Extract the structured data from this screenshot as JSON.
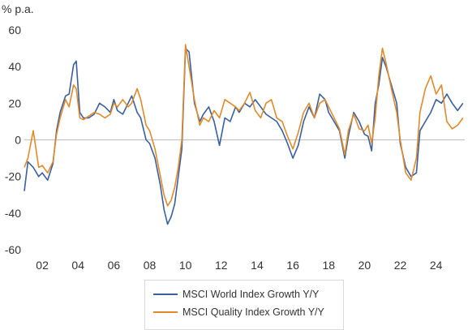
{
  "chart_data": {
    "type": "line",
    "title": "",
    "ylabel": "% p.a.",
    "xlabel": "",
    "ylim": [
      -60,
      60
    ],
    "yticks": [
      -60,
      -40,
      -20,
      0,
      20,
      40,
      60
    ],
    "xlim": [
      2001,
      2025.6
    ],
    "xticks": [
      {
        "x": 2002,
        "label": "02"
      },
      {
        "x": 2004,
        "label": "04"
      },
      {
        "x": 2006,
        "label": "06"
      },
      {
        "x": 2008,
        "label": "08"
      },
      {
        "x": 2010,
        "label": "10"
      },
      {
        "x": 2012,
        "label": "12"
      },
      {
        "x": 2014,
        "label": "14"
      },
      {
        "x": 2016,
        "label": "16"
      },
      {
        "x": 2018,
        "label": "18"
      },
      {
        "x": 2020,
        "label": "20"
      },
      {
        "x": 2022,
        "label": "22"
      },
      {
        "x": 2024,
        "label": "24"
      }
    ],
    "grid": false,
    "legend": "bottom",
    "series": [
      {
        "name": "MSCI World Index Growth Y/Y",
        "color": "#3a5f9f",
        "x": [
          2001.0,
          2001.2,
          2001.5,
          2001.8,
          2002.0,
          2002.3,
          2002.6,
          2002.8,
          2003.0,
          2003.3,
          2003.5,
          2003.75,
          2003.9,
          2004.1,
          2004.3,
          2004.6,
          2004.9,
          2005.2,
          2005.5,
          2005.8,
          2006.0,
          2006.2,
          2006.5,
          2006.8,
          2007.0,
          2007.3,
          2007.5,
          2007.8,
          2008.0,
          2008.3,
          2008.6,
          2008.8,
          2009.0,
          2009.2,
          2009.4,
          2009.6,
          2009.8,
          2010.0,
          2010.2,
          2010.5,
          2010.8,
          2011.0,
          2011.3,
          2011.6,
          2011.9,
          2012.2,
          2012.5,
          2012.8,
          2013.0,
          2013.3,
          2013.6,
          2013.9,
          2014.2,
          2014.5,
          2014.8,
          2015.1,
          2015.4,
          2015.7,
          2016.0,
          2016.3,
          2016.6,
          2016.9,
          2017.2,
          2017.5,
          2017.8,
          2018.0,
          2018.3,
          2018.6,
          2018.9,
          2019.1,
          2019.4,
          2019.7,
          2020.0,
          2020.2,
          2020.4,
          2020.6,
          2020.8,
          2021.0,
          2021.2,
          2021.5,
          2021.8,
          2022.0,
          2022.3,
          2022.6,
          2022.9,
          2023.1,
          2023.4,
          2023.7,
          2024.0,
          2024.3,
          2024.6,
          2024.9,
          2025.2,
          2025.5
        ],
        "values": [
          -28,
          -12,
          -15,
          -20,
          -18,
          -22,
          -13,
          5,
          15,
          24,
          25,
          41,
          43,
          15,
          12,
          12,
          14,
          20,
          18,
          15,
          22,
          16,
          14,
          20,
          24,
          15,
          12,
          0,
          -2,
          -10,
          -25,
          -38,
          -46,
          -42,
          -35,
          -20,
          -5,
          50,
          48,
          20,
          10,
          14,
          18,
          10,
          -3,
          12,
          10,
          18,
          15,
          20,
          18,
          22,
          18,
          14,
          12,
          10,
          5,
          -2,
          -10,
          -3,
          10,
          18,
          12,
          25,
          22,
          15,
          10,
          5,
          -10,
          2,
          15,
          10,
          3,
          2,
          -6,
          20,
          30,
          45,
          40,
          30,
          20,
          -2,
          -15,
          -20,
          -18,
          5,
          10,
          15,
          22,
          20,
          25,
          20,
          16,
          20
        ]
      },
      {
        "name": "MSCI Quality Index Growth Y/Y",
        "color": "#e08a2c",
        "x": [
          2001.0,
          2001.2,
          2001.5,
          2001.8,
          2002.0,
          2002.3,
          2002.6,
          2002.8,
          2003.0,
          2003.3,
          2003.5,
          2003.75,
          2003.9,
          2004.1,
          2004.3,
          2004.6,
          2004.9,
          2005.2,
          2005.5,
          2005.8,
          2006.0,
          2006.2,
          2006.5,
          2006.8,
          2007.0,
          2007.3,
          2007.5,
          2007.8,
          2008.0,
          2008.3,
          2008.6,
          2008.8,
          2009.0,
          2009.2,
          2009.4,
          2009.6,
          2009.8,
          2010.0,
          2010.2,
          2010.5,
          2010.8,
          2011.0,
          2011.3,
          2011.6,
          2011.9,
          2012.2,
          2012.5,
          2012.8,
          2013.0,
          2013.3,
          2013.6,
          2013.9,
          2014.2,
          2014.5,
          2014.8,
          2015.1,
          2015.4,
          2015.7,
          2016.0,
          2016.3,
          2016.6,
          2016.9,
          2017.2,
          2017.5,
          2017.8,
          2018.0,
          2018.3,
          2018.6,
          2018.9,
          2019.1,
          2019.4,
          2019.7,
          2020.0,
          2020.2,
          2020.4,
          2020.6,
          2020.8,
          2021.0,
          2021.2,
          2021.5,
          2021.8,
          2022.0,
          2022.3,
          2022.6,
          2022.9,
          2023.1,
          2023.4,
          2023.7,
          2024.0,
          2024.3,
          2024.6,
          2024.9,
          2025.2,
          2025.5
        ],
        "values": [
          -15,
          -10,
          5,
          -15,
          -14,
          -18,
          -12,
          3,
          12,
          22,
          18,
          30,
          28,
          12,
          11,
          13,
          15,
          14,
          12,
          14,
          20,
          18,
          22,
          18,
          20,
          28,
          22,
          8,
          5,
          -5,
          -20,
          -30,
          -36,
          -33,
          -26,
          -15,
          0,
          52,
          40,
          22,
          8,
          12,
          10,
          16,
          12,
          22,
          20,
          18,
          16,
          20,
          26,
          16,
          12,
          20,
          22,
          12,
          10,
          2,
          -5,
          4,
          15,
          20,
          12,
          20,
          22,
          18,
          12,
          6,
          -8,
          5,
          14,
          6,
          5,
          8,
          -2,
          12,
          35,
          50,
          42,
          28,
          15,
          0,
          -18,
          -22,
          -10,
          15,
          28,
          35,
          25,
          30,
          10,
          6,
          8,
          12
        ]
      }
    ]
  }
}
